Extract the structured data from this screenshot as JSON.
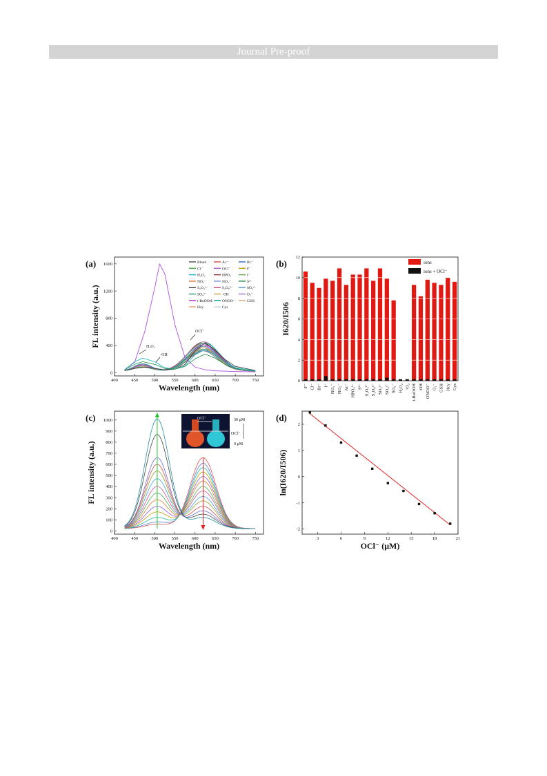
{
  "header": {
    "banner": "Journal Pre-proof"
  },
  "figure": {
    "panels": [
      {
        "label": "(a)",
        "chart_data": {
          "type": "line",
          "xlabel": "Wavelength (nm)",
          "ylabel": "FL intensity (a.u.)",
          "xlim": [
            400,
            770
          ],
          "ylim": [
            -50,
            1700
          ],
          "xticks": [
            400,
            450,
            500,
            550,
            600,
            650,
            700,
            750
          ],
          "yticks": [
            0,
            400,
            800,
            1200,
            1600
          ],
          "legend_placement": "top-right",
          "legend": [
            "Blank",
            "Ac⁻",
            "Br⁻",
            "Cl⁻",
            "OCl⁻",
            "F⁻",
            "H₂O₂",
            "HPO₄",
            "I⁻",
            "NO₂⁻",
            "NO₃⁻",
            "S²⁻",
            "S₂O₃²⁻",
            "S₂O₈²⁻",
            "SO₃²⁻",
            "SO₄²⁻",
            "·OH",
            "O₂⁻",
            "t-BuOOH",
            "ONOO⁻",
            "GSH",
            "Hcy",
            "Cys"
          ],
          "annotations": [
            "OCl⁻",
            "H₂O₂",
            "·OH"
          ],
          "series": [
            {
              "name": "OCl⁻",
              "x": [
                425,
                450,
                475,
                500,
                512,
                525,
                550,
                575,
                600,
                625,
                650,
                700,
                750
              ],
              "values": [
                40,
                150,
                600,
                1250,
                1600,
                1450,
                700,
                220,
                80,
                40,
                25,
                15,
                10
              ]
            },
            {
              "name": "Blank",
              "x": [
                425,
                450,
                475,
                500,
                525,
                550,
                575,
                600,
                625,
                650,
                675,
                700,
                750
              ],
              "values": [
                30,
                60,
                80,
                60,
                40,
                50,
                120,
                320,
                440,
                330,
                190,
                90,
                30
              ]
            },
            {
              "name": "H₂O₂",
              "x": [
                425,
                450,
                470,
                500,
                525,
                550,
                575,
                600,
                625,
                650,
                675,
                700,
                750
              ],
              "values": [
                40,
                160,
                210,
                160,
                70,
                50,
                100,
                260,
                340,
                260,
                150,
                70,
                25
              ]
            },
            {
              "name": "·OH",
              "x": [
                425,
                450,
                470,
                500,
                525,
                550,
                575,
                600,
                625,
                650,
                675,
                700,
                750
              ],
              "values": [
                40,
                120,
                160,
                120,
                60,
                50,
                90,
                200,
                270,
                210,
                120,
                55,
                20
              ]
            }
          ]
        }
      },
      {
        "label": "(b)",
        "chart_data": {
          "type": "bar",
          "ylabel": "I620/I506",
          "ylim": [
            0,
            12
          ],
          "yticks": [
            0,
            2,
            4,
            6,
            8,
            10,
            12
          ],
          "legend_placement": "top-right",
          "legend": [
            "ions",
            "ions + OCl⁻"
          ],
          "categories": [
            "F⁻",
            "Cl⁻",
            "Br⁻",
            "I⁻",
            "NO₂⁻",
            "NO₃⁻",
            "Ac⁻",
            "HPO₄²⁻",
            "S²⁻",
            "S₂O₃²⁻",
            "S₂O₈²⁻",
            "SO₃²⁻",
            "SO₄²⁻",
            "SO₃⁻",
            "H₂O₂",
            "¹O₂",
            "t-BuOOH",
            "·OH",
            "ONOO⁻",
            "O₂⁻",
            "GSH",
            "Hcy",
            "Cys"
          ],
          "series": [
            {
              "name": "ions",
              "values": [
                10.6,
                9.5,
                9.0,
                9.9,
                9.7,
                10.9,
                9.3,
                10.3,
                10.3,
                10.9,
                9.7,
                10.9,
                9.9,
                7.8,
                0,
                0,
                9.3,
                8.2,
                9.8,
                9.5,
                9.3,
                10.0,
                9.6
              ]
            },
            {
              "name": "ions + OCl⁻",
              "values": [
                0.15,
                0.15,
                0.15,
                0.45,
                0.15,
                0.15,
                0.15,
                0.15,
                0.15,
                0.15,
                0.15,
                0.15,
                0.3,
                0.15,
                0.15,
                0.15,
                0.15,
                0.15,
                0.15,
                0.15,
                0.15,
                0.15,
                0.15
              ]
            }
          ]
        }
      },
      {
        "label": "(c)",
        "inset_labels": {
          "arrow": "OCl⁻",
          "top": "30 μM",
          "bottom": "0 μM"
        },
        "chart_data": {
          "type": "line",
          "xlabel": "Wavelength (nm)",
          "ylabel": "FL intensity (a.u.)",
          "xlim": [
            400,
            770
          ],
          "ylim": [
            -30,
            1080
          ],
          "xticks": [
            400,
            450,
            500,
            550,
            600,
            650,
            700,
            750
          ],
          "yticks": [
            0,
            100,
            200,
            300,
            400,
            500,
            600,
            700,
            800,
            900,
            1000
          ],
          "peak_green_nm": 506,
          "peak_red_nm": 620,
          "green_peaks": [
            40,
            60,
            100,
            150,
            200,
            260,
            320,
            380,
            450,
            520,
            580,
            640,
            850,
            990
          ],
          "red_peaks": [
            640,
            590,
            550,
            510,
            470,
            430,
            380,
            340,
            290,
            250,
            200,
            160,
            130,
            100
          ]
        }
      },
      {
        "label": "(d)",
        "chart_data": {
          "type": "scatter",
          "xlabel": "OCl⁻ (μM)",
          "ylabel": "ln(I620/I506)",
          "xlim": [
            1,
            21
          ],
          "ylim": [
            -2.2,
            2.5
          ],
          "xticks": [
            3,
            6,
            9,
            12,
            15,
            18,
            21
          ],
          "yticks": [
            -2,
            -1,
            0,
            1,
            2
          ],
          "x": [
            2,
            4,
            6,
            8,
            10,
            12,
            14,
            16,
            18,
            20
          ],
          "y": [
            2.45,
            1.95,
            1.3,
            0.8,
            0.3,
            -0.25,
            -0.55,
            -1.05,
            -1.4,
            -1.8
          ],
          "fit": {
            "x": [
              2,
              20
            ],
            "y": [
              2.4,
              -1.85
            ]
          }
        }
      }
    ]
  }
}
